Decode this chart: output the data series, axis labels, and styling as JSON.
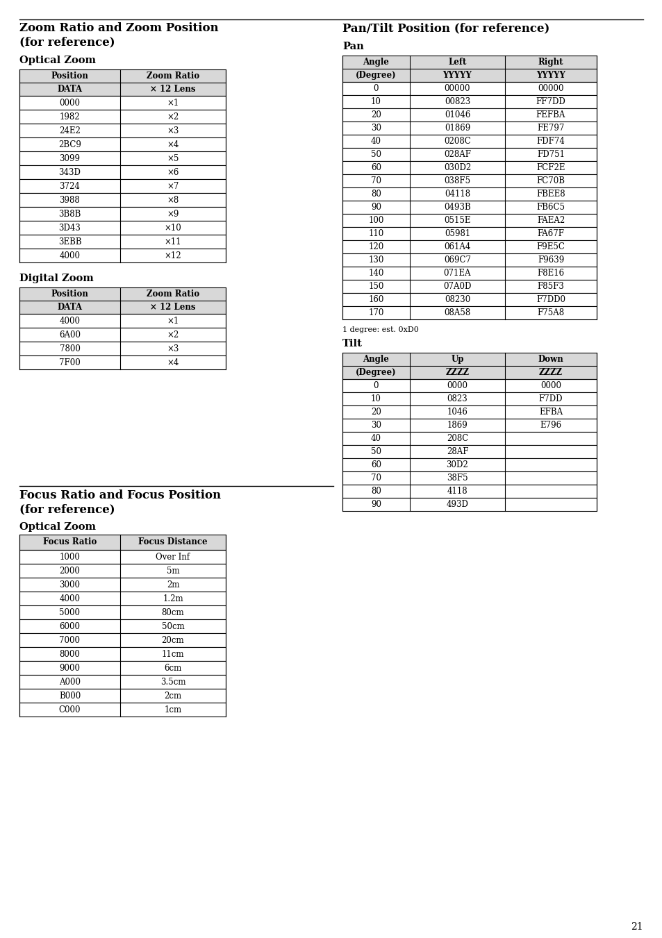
{
  "page_num": "21",
  "bg_color": "#ffffff",
  "section1_title_line1": "Zoom Ratio and Zoom Position",
  "section1_title_line2": "(for reference)",
  "section2_title": "Pan/Tilt Position (for reference)",
  "section3_title_line1": "Focus Ratio and Focus Position",
  "section3_title_line2": "(for reference)",
  "optical_zoom_subtitle": "Optical Zoom",
  "digital_zoom_subtitle": "Digital Zoom",
  "pan_subtitle": "Pan",
  "tilt_subtitle": "Tilt",
  "focus_optical_subtitle": "Optical Zoom",
  "oz_headers_row1": [
    "Position",
    "Zoom Ratio"
  ],
  "oz_headers_row2": [
    "DATA",
    "× 12 Lens"
  ],
  "optical_zoom_data": [
    [
      "0000",
      "×1"
    ],
    [
      "1982",
      "×2"
    ],
    [
      "24E2",
      "×3"
    ],
    [
      "2BC9",
      "×4"
    ],
    [
      "3099",
      "×5"
    ],
    [
      "343D",
      "×6"
    ],
    [
      "3724",
      "×7"
    ],
    [
      "3988",
      "×8"
    ],
    [
      "3B8B",
      "×9"
    ],
    [
      "3D43",
      "×10"
    ],
    [
      "3EBB",
      "×11"
    ],
    [
      "4000",
      "×12"
    ]
  ],
  "dz_headers_row1": [
    "Position",
    "Zoom Ratio"
  ],
  "dz_headers_row2": [
    "DATA",
    "× 12 Lens"
  ],
  "digital_zoom_data": [
    [
      "4000",
      "×1"
    ],
    [
      "6A00",
      "×2"
    ],
    [
      "7800",
      "×3"
    ],
    [
      "7F00",
      "×4"
    ]
  ],
  "pan_headers_row1": [
    "Angle",
    "Left",
    "Right"
  ],
  "pan_headers_row2": [
    "(Degree)",
    "YYYYY",
    "YYYYY"
  ],
  "pan_data": [
    [
      "0",
      "00000",
      "00000"
    ],
    [
      "10",
      "00823",
      "FF7DD"
    ],
    [
      "20",
      "01046",
      "FEFBA"
    ],
    [
      "30",
      "01869",
      "FE797"
    ],
    [
      "40",
      "0208C",
      "FDF74"
    ],
    [
      "50",
      "028AF",
      "FD751"
    ],
    [
      "60",
      "030D2",
      "FCF2E"
    ],
    [
      "70",
      "038F5",
      "FC70B"
    ],
    [
      "80",
      "04118",
      "FBEE8"
    ],
    [
      "90",
      "0493B",
      "FB6C5"
    ],
    [
      "100",
      "0515E",
      "FAEA2"
    ],
    [
      "110",
      "05981",
      "FA67F"
    ],
    [
      "120",
      "061A4",
      "F9E5C"
    ],
    [
      "130",
      "069C7",
      "F9639"
    ],
    [
      "140",
      "071EA",
      "F8E16"
    ],
    [
      "150",
      "07A0D",
      "F85F3"
    ],
    [
      "160",
      "08230",
      "F7DD0"
    ],
    [
      "170",
      "08A58",
      "F75A8"
    ]
  ],
  "pan_note": "1 degree: est. 0xD0",
  "tilt_headers_row1": [
    "Angle",
    "Up",
    "Down"
  ],
  "tilt_headers_row2": [
    "(Degree)",
    "ZZZZ",
    "ZZZZ"
  ],
  "tilt_data": [
    [
      "0",
      "0000",
      "0000"
    ],
    [
      "10",
      "0823",
      "F7DD"
    ],
    [
      "20",
      "1046",
      "EFBA"
    ],
    [
      "30",
      "1869",
      "E796"
    ],
    [
      "40",
      "208C",
      ""
    ],
    [
      "50",
      "28AF",
      ""
    ],
    [
      "60",
      "30D2",
      ""
    ],
    [
      "70",
      "38F5",
      ""
    ],
    [
      "80",
      "4118",
      ""
    ],
    [
      "90",
      "493D",
      ""
    ]
  ],
  "focus_headers_row1": [
    "Focus Ratio",
    "Focus Distance"
  ],
  "focus_data": [
    [
      "1000",
      "Over Inf"
    ],
    [
      "2000",
      "5m"
    ],
    [
      "3000",
      "2m"
    ],
    [
      "4000",
      "1.2m"
    ],
    [
      "5000",
      "80cm"
    ],
    [
      "6000",
      "50cm"
    ],
    [
      "7000",
      "20cm"
    ],
    [
      "8000",
      "11cm"
    ],
    [
      "9000",
      "6cm"
    ],
    [
      "A000",
      "3.5cm"
    ],
    [
      "B000",
      "2cm"
    ],
    [
      "C000",
      "1cm"
    ]
  ]
}
